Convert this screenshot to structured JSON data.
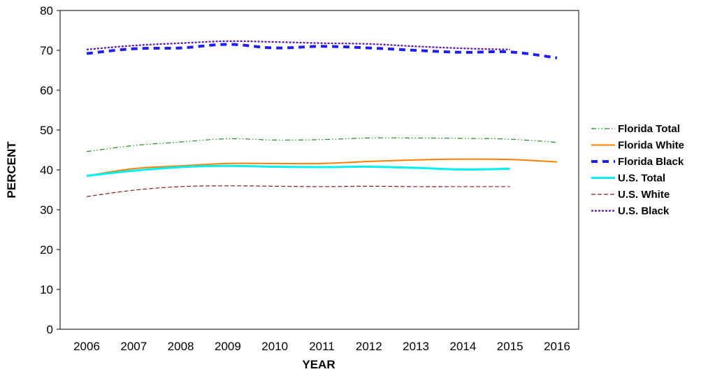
{
  "chart_data": {
    "type": "line",
    "title": "",
    "xlabel": "YEAR",
    "ylabel": "PERCENT",
    "categories": [
      "2006",
      "2007",
      "2008",
      "2009",
      "2010",
      "2011",
      "2012",
      "2013",
      "2014",
      "2015",
      "2016"
    ],
    "yticks": [
      "0",
      "10",
      "20",
      "30",
      "40",
      "50",
      "60",
      "70",
      "80"
    ],
    "ylim": [
      0,
      80
    ],
    "grid": false,
    "legend_position": "right",
    "series": [
      {
        "name": "Florida Total",
        "color": "#228B22",
        "dash": "dash-dot-dot",
        "values": [
          44.6,
          46.1,
          47.0,
          47.8,
          47.5,
          47.6,
          48.0,
          48.0,
          47.9,
          47.7,
          46.9
        ]
      },
      {
        "name": "Florida White",
        "color": "#FF7F00",
        "dash": "solid",
        "values": [
          38.5,
          40.3,
          41.0,
          41.6,
          41.6,
          41.6,
          42.1,
          42.5,
          42.7,
          42.6,
          42.0
        ]
      },
      {
        "name": "Florida Black",
        "color": "#1F1FE6",
        "dash": "dash-heavy",
        "values": [
          69.2,
          70.4,
          70.6,
          71.5,
          70.6,
          71.0,
          70.6,
          70.0,
          69.5,
          69.6,
          68.1
        ]
      },
      {
        "name": "U.S. Total",
        "color": "#00F0F0",
        "dash": "solid-thick",
        "values": [
          38.5,
          39.8,
          40.7,
          41.0,
          40.8,
          40.7,
          40.8,
          40.5,
          40.1,
          40.3,
          null
        ]
      },
      {
        "name": "U.S. White",
        "color": "#8B1A1A",
        "dash": "dash",
        "values": [
          33.3,
          34.9,
          35.8,
          36.0,
          35.9,
          35.8,
          35.9,
          35.8,
          35.8,
          35.8,
          null
        ]
      },
      {
        "name": "U.S. Black",
        "color": "#5B1A9E",
        "dash": "dot",
        "values": [
          70.2,
          71.2,
          71.8,
          72.3,
          72.1,
          71.8,
          71.6,
          71.0,
          70.5,
          70.2,
          null
        ]
      }
    ]
  }
}
